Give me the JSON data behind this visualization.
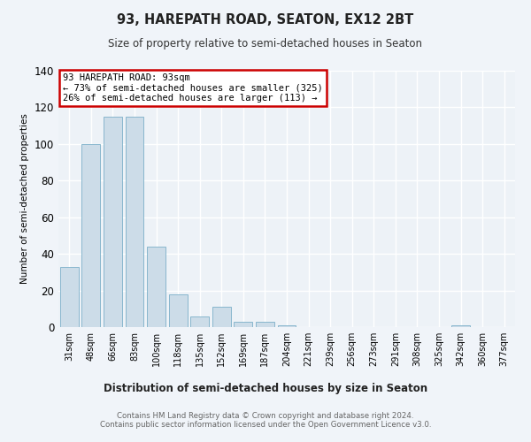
{
  "title": "93, HAREPATH ROAD, SEATON, EX12 2BT",
  "subtitle": "Size of property relative to semi-detached houses in Seaton",
  "xlabel": "Distribution of semi-detached houses by size in Seaton",
  "ylabel": "Number of semi-detached properties",
  "categories": [
    "31sqm",
    "48sqm",
    "66sqm",
    "83sqm",
    "100sqm",
    "118sqm",
    "135sqm",
    "152sqm",
    "169sqm",
    "187sqm",
    "204sqm",
    "221sqm",
    "239sqm",
    "256sqm",
    "273sqm",
    "291sqm",
    "308sqm",
    "325sqm",
    "342sqm",
    "360sqm",
    "377sqm"
  ],
  "values": [
    33,
    100,
    115,
    115,
    44,
    18,
    6,
    11,
    3,
    3,
    1,
    0,
    0,
    0,
    0,
    0,
    0,
    0,
    1,
    0,
    0
  ],
  "bar_color": "#ccdce8",
  "bar_edge_color": "#7aafc8",
  "annotation_title": "93 HAREPATH ROAD: 93sqm",
  "annotation_line2": "← 73% of semi-detached houses are smaller (325)",
  "annotation_line3": "26% of semi-detached houses are larger (113) →",
  "footer_line1": "Contains HM Land Registry data © Crown copyright and database right 2024.",
  "footer_line2": "Contains public sector information licensed under the Open Government Licence v3.0.",
  "ylim": [
    0,
    140
  ],
  "yticks": [
    0,
    20,
    40,
    60,
    80,
    100,
    120,
    140
  ],
  "background_color": "#f0f4f9",
  "plot_bg_color": "#edf2f7",
  "grid_color": "#ffffff",
  "annotation_box_color": "#ffffff",
  "annotation_box_edge": "#cc0000"
}
